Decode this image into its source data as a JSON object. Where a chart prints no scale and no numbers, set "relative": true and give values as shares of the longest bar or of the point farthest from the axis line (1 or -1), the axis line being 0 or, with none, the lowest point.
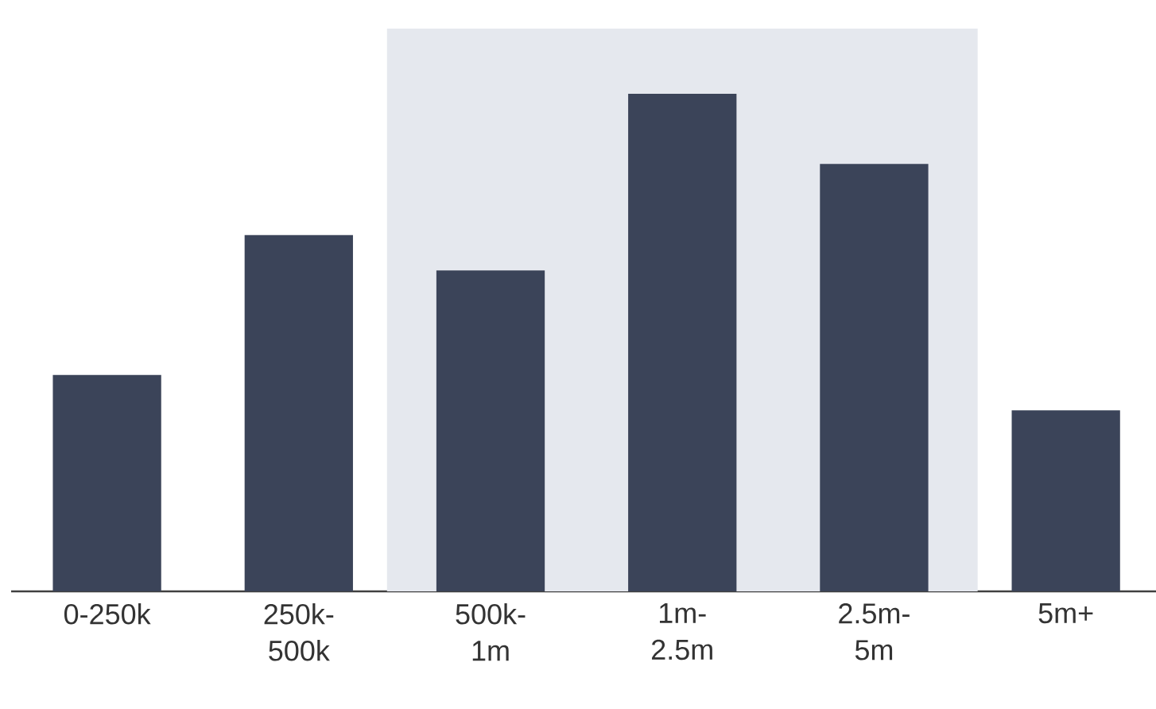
{
  "chart_data": {
    "type": "bar",
    "relative": true,
    "color": "#3b4459",
    "categories": [
      "0-250k",
      "250k-500k",
      "500k-1m",
      "1m-2.5m",
      "2.5m-5m",
      "5m+"
    ],
    "values": [
      0.435,
      0.716,
      0.645,
      1,
      0.859,
      0.364
    ],
    "bands": [
      {
        "axis": "x",
        "from": "500k-1m",
        "to": "2.5m-5m",
        "color": "#e5e8ee"
      }
    ]
  }
}
